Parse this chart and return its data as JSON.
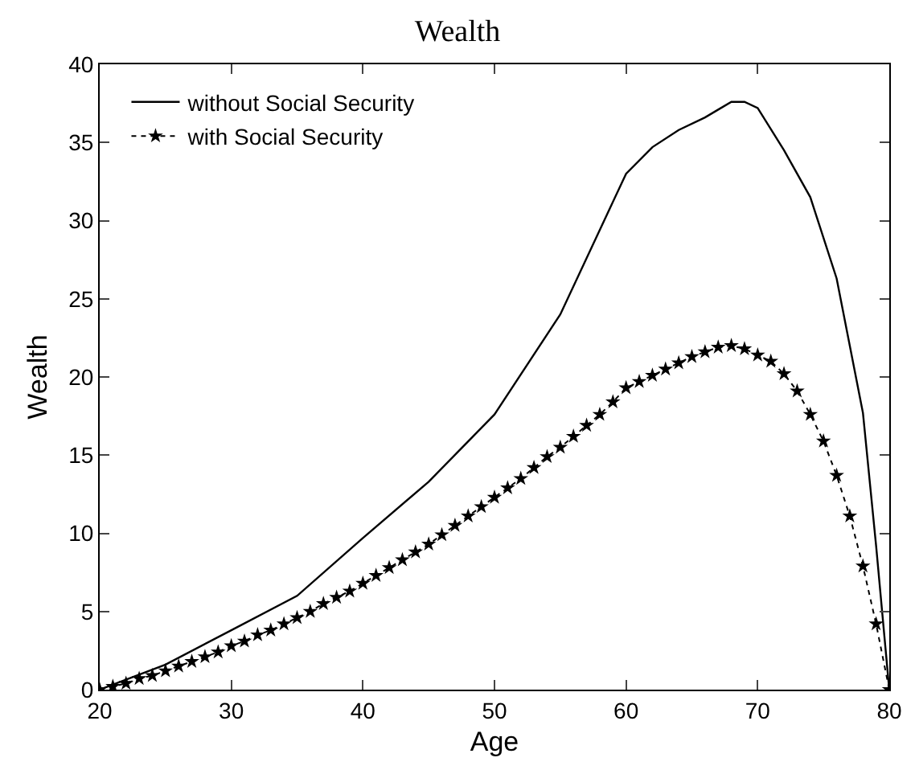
{
  "chart_data": {
    "type": "line",
    "title": "Wealth",
    "xlabel": "Age",
    "ylabel": "Wealth",
    "xlim": [
      20,
      80
    ],
    "xticks": [
      20,
      30,
      40,
      50,
      60,
      70,
      80
    ],
    "ylim": [
      0,
      40
    ],
    "yticks": [
      0,
      5,
      10,
      15,
      20,
      25,
      30,
      35,
      40
    ],
    "legend": "top left",
    "series": [
      {
        "name": "without Social Security",
        "color": "#000000",
        "marker": "none",
        "line_style": "solid",
        "x": [
          20,
          25,
          30,
          35,
          40,
          45,
          50,
          55,
          60,
          62,
          64,
          66,
          67,
          68,
          69,
          70,
          72,
          74,
          76,
          78,
          79,
          80
        ],
        "values": [
          0,
          1.6,
          3.8,
          6.0,
          9.7,
          13.3,
          17.6,
          24.0,
          33.0,
          34.7,
          35.8,
          36.6,
          37.1,
          37.6,
          37.6,
          37.2,
          34.5,
          31.5,
          26.3,
          17.7,
          9.2,
          0
        ]
      },
      {
        "name": "with Social Security",
        "color": "#000000",
        "marker": "star",
        "line_style": "dotted",
        "x": [
          20,
          21,
          22,
          23,
          24,
          25,
          26,
          27,
          28,
          29,
          30,
          31,
          32,
          33,
          34,
          35,
          36,
          37,
          38,
          39,
          40,
          41,
          42,
          43,
          44,
          45,
          46,
          47,
          48,
          49,
          50,
          51,
          52,
          53,
          54,
          55,
          56,
          57,
          58,
          59,
          60,
          61,
          62,
          63,
          64,
          65,
          66,
          67,
          68,
          69,
          70,
          71,
          72,
          73,
          74,
          75,
          76,
          77,
          78,
          79,
          80
        ],
        "values": [
          0,
          0.2,
          0.4,
          0.7,
          0.9,
          1.2,
          1.5,
          1.8,
          2.1,
          2.4,
          2.8,
          3.1,
          3.5,
          3.8,
          4.2,
          4.6,
          5.0,
          5.5,
          5.9,
          6.3,
          6.8,
          7.3,
          7.8,
          8.3,
          8.8,
          9.3,
          9.9,
          10.5,
          11.1,
          11.7,
          12.3,
          12.9,
          13.5,
          14.2,
          14.9,
          15.5,
          16.2,
          16.9,
          17.6,
          18.4,
          19.3,
          19.7,
          20.1,
          20.5,
          20.9,
          21.3,
          21.6,
          21.9,
          22.0,
          21.8,
          21.4,
          21.0,
          20.2,
          19.1,
          17.6,
          15.9,
          13.7,
          11.1,
          7.9,
          4.2,
          0
        ]
      }
    ]
  }
}
